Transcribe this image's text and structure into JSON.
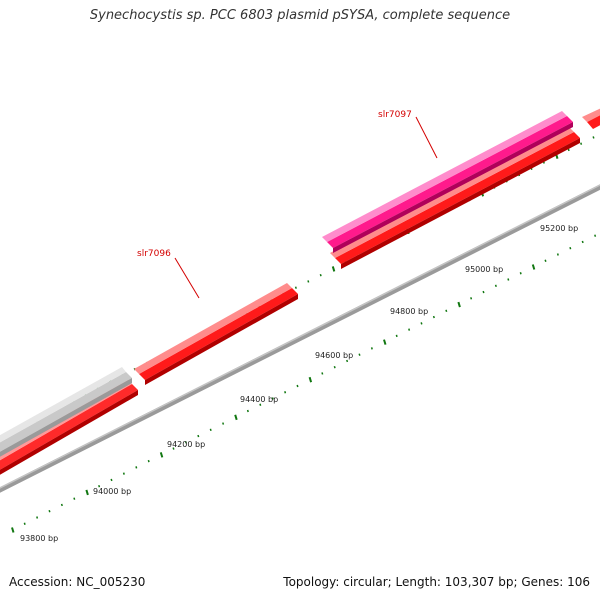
{
  "title": "Synechocystis sp. PCC 6803 plasmid pSYSA, complete sequence",
  "footer": {
    "accession": "Accession: NC_005230",
    "summary": "Topology: circular; Length: 103,307 bp; Genes: 106"
  },
  "colors": {
    "backbone": "#888888",
    "gene_red": "#ff0000",
    "gene_pink": "#ff1493",
    "gene_gray": "#c8c8c8",
    "tick": "#117711",
    "label_red": "#d40000"
  },
  "map": {
    "tick_labels": [
      "93800 bp",
      "94000 bp",
      "94200 bp",
      "94400 bp",
      "94600 bp",
      "94800 bp",
      "95000 bp",
      "95200 bp"
    ],
    "gene_labels": [
      "slr7096",
      "slr7097"
    ]
  }
}
